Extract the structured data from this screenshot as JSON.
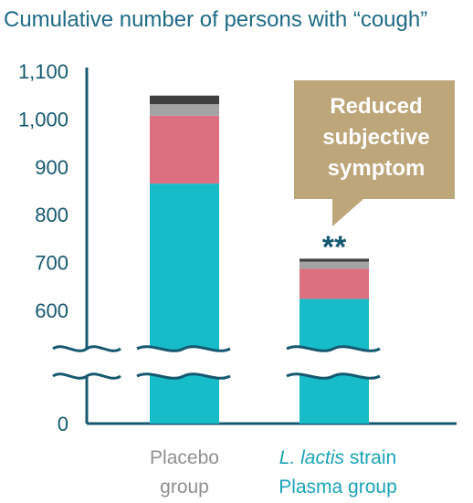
{
  "chart_data": {
    "type": "bar",
    "stacked": true,
    "title": "Cumulative number of persons with “cough”",
    "xlabel": "",
    "ylabel": "",
    "axis_break": [
      520,
      580
    ],
    "ylim": [
      0,
      1100
    ],
    "yticks": [
      {
        "value": 0,
        "label": "0"
      },
      {
        "value": 600,
        "label": "600"
      },
      {
        "value": 700,
        "label": "700"
      },
      {
        "value": 800,
        "label": "800"
      },
      {
        "value": 900,
        "label": "900"
      },
      {
        "value": 1000,
        "label": "1,000"
      },
      {
        "value": 1100,
        "label": "1,100"
      }
    ],
    "categories": [
      {
        "lines": [
          "Placebo",
          "group"
        ],
        "italic": [
          false,
          false
        ],
        "color": "#8f8f8f"
      },
      {
        "lines": [
          "L. lactis strain",
          "Plasma group"
        ],
        "italic_word": "L. lactis",
        "color": "#1aa3b8"
      }
    ],
    "series": [
      {
        "color": "#17bcc9",
        "values": [
          865,
          624
        ]
      },
      {
        "color": "#dc7080",
        "values": [
          142,
          63
        ]
      },
      {
        "color": "#a3a3a3",
        "values": [
          24,
          15
        ]
      },
      {
        "color": "#404040",
        "values": [
          18,
          6
        ]
      }
    ],
    "totals": [
      1049,
      708
    ],
    "annotation": {
      "lines": [
        "Reduced",
        "subjective",
        "symptom"
      ],
      "significance": "**",
      "target_category": 1,
      "color": "#bda67a"
    },
    "grid": false,
    "legend": "none"
  }
}
